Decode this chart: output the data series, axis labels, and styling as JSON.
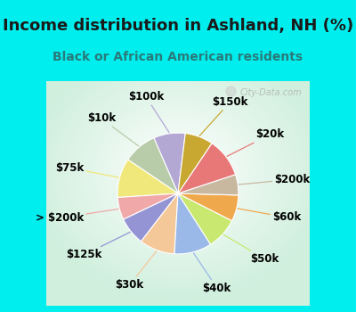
{
  "title": "Income distribution in Ashland, NH (%)",
  "subtitle": "Black or African American residents",
  "bg_cyan": "#00EEEE",
  "bg_chart_colors": [
    "#e8f5ee",
    "#f5faf8",
    "#e0f0e8"
  ],
  "watermark": "City-Data.com",
  "labels": [
    "$100k",
    "$10k",
    "$75k",
    "> $200k",
    "$125k",
    "$30k",
    "$40k",
    "$50k",
    "$60k",
    "$200k",
    "$20k",
    "$150k"
  ],
  "sizes": [
    8.5,
    9.0,
    10.5,
    6.0,
    7.5,
    9.5,
    10.0,
    8.5,
    7.0,
    5.5,
    10.5,
    7.5
  ],
  "colors": [
    "#b3a8d4",
    "#b8ccaa",
    "#f0e87a",
    "#f0a8a8",
    "#9494d4",
    "#f5c89a",
    "#9ab8e8",
    "#c8e870",
    "#f0a84c",
    "#c8b8a0",
    "#e87878",
    "#c8a830"
  ],
  "label_fontsize": 8.5,
  "title_fontsize": 13,
  "subtitle_fontsize": 10,
  "startangle": 83
}
